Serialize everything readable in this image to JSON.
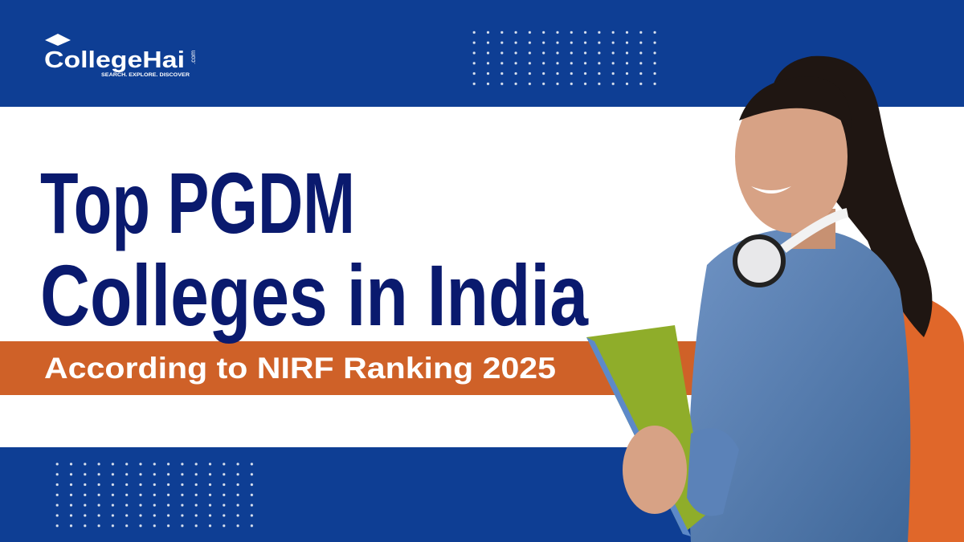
{
  "logo": {
    "name": "CollegeHai",
    "domain": ".com",
    "tagline": "SEARCH. EXPLORE. DISCOVER"
  },
  "headline": {
    "lines": [
      "Top PGDM",
      "Colleges in India"
    ],
    "subtitle": "According to NIRF Ranking 2025"
  }
}
